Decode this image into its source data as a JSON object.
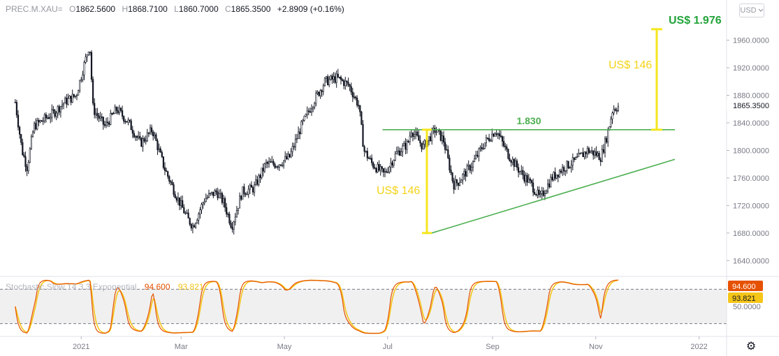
{
  "header": {
    "symbol": "PREC.M.XAU=",
    "open_label": "O",
    "open": "1862.5600",
    "high_label": "H",
    "high": "1868.7100",
    "low_label": "L",
    "low": "1860.7000",
    "close_label": "C",
    "close": "1865.3500",
    "change": "+2.8909 (+0.16%)"
  },
  "currency_button": {
    "label": "USD",
    "icon": "chevron-down-icon"
  },
  "settings": {
    "icon": "gear-icon"
  },
  "chart_data": {
    "type": "candlestick",
    "ylim": [
      1620,
      1990
    ],
    "yticks": [
      1640,
      1680,
      1720,
      1760,
      1800,
      1840,
      1880,
      1920,
      1960
    ],
    "ytick_labels": [
      "1640.0000",
      "1680.0000",
      "1720.0000",
      "1760.0000",
      "1800.0000",
      "1840.0000",
      "1880.0000",
      "1920.0000",
      "1960.0000"
    ],
    "last_price_label": "1865.3500",
    "xtick_labels": [
      "2021",
      "Mar",
      "May",
      "Jul",
      "Sep",
      "Nov",
      "2022"
    ],
    "price_path": [
      [
        "2020-11-23",
        1870
      ],
      [
        "2020-11-27",
        1800
      ],
      [
        "2020-11-30",
        1775
      ],
      [
        "2020-12-04",
        1835
      ],
      [
        "2020-12-10",
        1845
      ],
      [
        "2020-12-16",
        1855
      ],
      [
        "2020-12-22",
        1870
      ],
      [
        "2020-12-29",
        1880
      ],
      [
        "2021-01-06",
        1955
      ],
      [
        "2021-01-08",
        1860
      ],
      [
        "2021-01-15",
        1835
      ],
      [
        "2021-01-22",
        1860
      ],
      [
        "2021-01-29",
        1840
      ],
      [
        "2021-02-05",
        1810
      ],
      [
        "2021-02-12",
        1830
      ],
      [
        "2021-02-19",
        1775
      ],
      [
        "2021-02-26",
        1735
      ],
      [
        "2021-03-05",
        1700
      ],
      [
        "2021-03-08",
        1690
      ],
      [
        "2021-03-15",
        1730
      ],
      [
        "2021-03-22",
        1740
      ],
      [
        "2021-03-26",
        1725
      ],
      [
        "2021-03-31",
        1690
      ],
      [
        "2021-04-06",
        1740
      ],
      [
        "2021-04-13",
        1745
      ],
      [
        "2021-04-20",
        1780
      ],
      [
        "2021-04-27",
        1780
      ],
      [
        "2021-05-04",
        1790
      ],
      [
        "2021-05-11",
        1835
      ],
      [
        "2021-05-18",
        1870
      ],
      [
        "2021-05-25",
        1900
      ],
      [
        "2021-06-01",
        1905
      ],
      [
        "2021-06-08",
        1895
      ],
      [
        "2021-06-14",
        1865
      ],
      [
        "2021-06-17",
        1800
      ],
      [
        "2021-06-22",
        1780
      ],
      [
        "2021-06-29",
        1765
      ],
      [
        "2021-07-06",
        1795
      ],
      [
        "2021-07-13",
        1810
      ],
      [
        "2021-07-15",
        1830
      ],
      [
        "2021-07-22",
        1805
      ],
      [
        "2021-07-29",
        1830
      ],
      [
        "2021-08-03",
        1815
      ],
      [
        "2021-08-09",
        1750
      ],
      [
        "2021-08-12",
        1755
      ],
      [
        "2021-08-20",
        1780
      ],
      [
        "2021-08-27",
        1810
      ],
      [
        "2021-09-03",
        1830
      ],
      [
        "2021-09-10",
        1795
      ],
      [
        "2021-09-17",
        1770
      ],
      [
        "2021-09-24",
        1750
      ],
      [
        "2021-09-29",
        1730
      ],
      [
        "2021-10-06",
        1760
      ],
      [
        "2021-10-13",
        1775
      ],
      [
        "2021-10-20",
        1785
      ],
      [
        "2021-10-27",
        1800
      ],
      [
        "2021-11-01",
        1795
      ],
      [
        "2021-11-04",
        1790
      ],
      [
        "2021-11-08",
        1825
      ],
      [
        "2021-11-11",
        1860
      ],
      [
        "2021-11-15",
        1865
      ]
    ],
    "annotations": {
      "resistance_label": "1.830",
      "resistance_level": 1830,
      "pattern_height_label": "US$ 146",
      "pattern_low": 1680,
      "projection_label": "US$ 146",
      "target_label": "US$ 1.976",
      "target_level": 1976
    },
    "stochastic": {
      "label": "Stochastic Slow 14 3 3 Exponential",
      "k": "94.600",
      "d": "93.821",
      "axis_label": "50.0000",
      "levels": [
        80,
        20
      ],
      "k_color": "#e65100",
      "d_color": "#f5c518"
    }
  },
  "colors": {
    "candle": "#131722",
    "resistance": "#4caf50",
    "target_text": "#22a33a",
    "measure": "#f5e61e",
    "measure_text": "#f5d318",
    "stoch_band": "#f0f0f0"
  }
}
